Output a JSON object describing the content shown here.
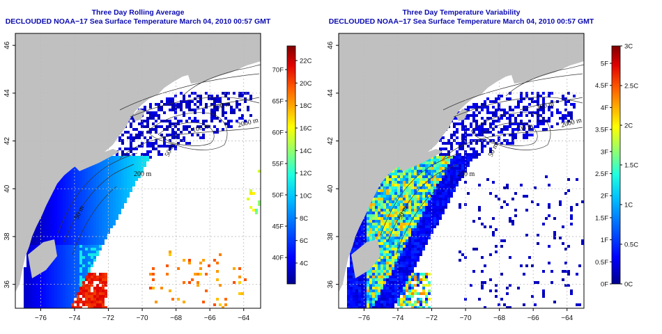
{
  "panels": [
    {
      "title": "Three Day Rolling Average",
      "subtitle": "DECLOUDED NOAA−17 Sea Surface Temperature March 04, 2010 00:57 GMT",
      "colorbar_celsius": [
        "4C",
        "6C",
        "8C",
        "10C",
        "12C",
        "14C",
        "16C",
        "18C",
        "20C",
        "22C"
      ],
      "colorbar_fahrenheit": [
        "40F",
        "45F",
        "50F",
        "55F",
        "60F",
        "65F",
        "70F"
      ]
    },
    {
      "title": "Three Day Temperature Variability",
      "subtitle": "DECLOUDED NOAA−17 Sea Surface Temperature March 04, 2010 00:57 GMT",
      "colorbar_celsius": [
        "0C",
        "0.5C",
        "1C",
        "1.5C",
        "2C",
        "2.5C",
        "3C"
      ],
      "colorbar_fahrenheit": [
        "0F",
        "0.5F",
        "1F",
        "1.5F",
        "2F",
        "2.5F",
        "3F",
        "3.5F",
        "4F",
        "4.5F",
        "5F"
      ]
    }
  ],
  "longitude_ticks": [
    "−76",
    "−74",
    "−72",
    "−70",
    "−68",
    "−66",
    "−64"
  ],
  "latitude_ticks": [
    "36",
    "38",
    "40",
    "42",
    "44",
    "46"
  ],
  "isobath_labels": [
    "100 m",
    "2000 m",
    "100 m",
    "50 m",
    "200 m",
    "50 m"
  ],
  "colors": {
    "land": "#c0c0c0",
    "title": "#0b0bb0",
    "colormap": [
      "#00008f",
      "#0000ff",
      "#00a0ff",
      "#00ffff",
      "#80ff80",
      "#ffff00",
      "#ff8000",
      "#ff0000",
      "#800000"
    ]
  }
}
